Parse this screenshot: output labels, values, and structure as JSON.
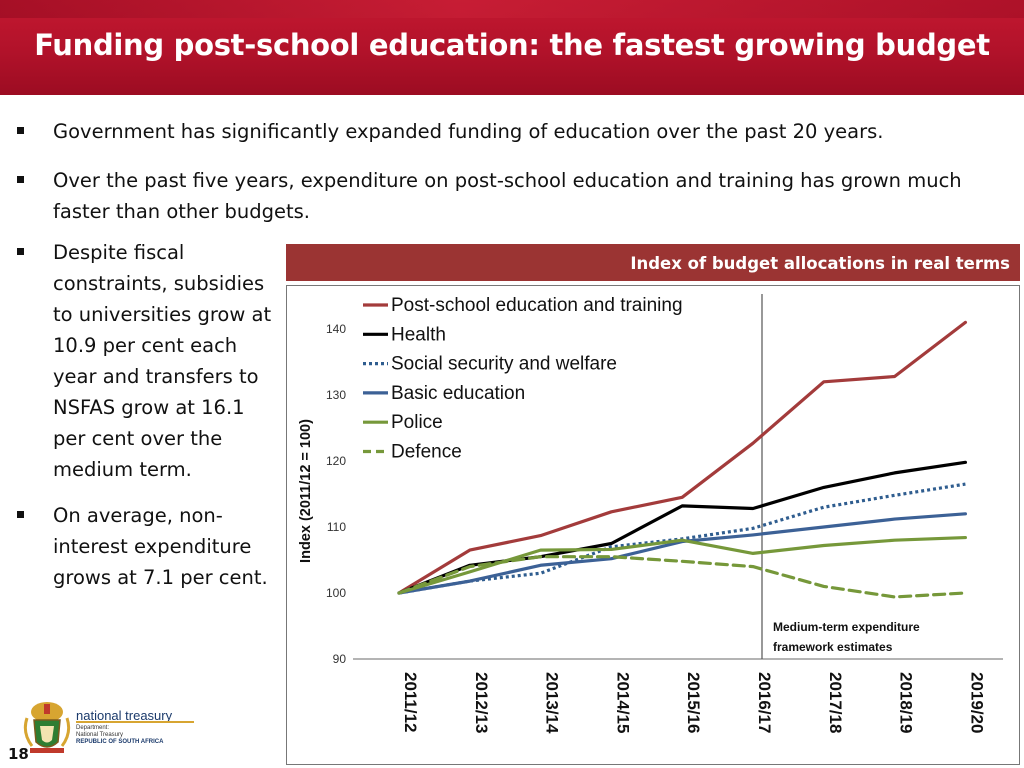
{
  "slide": {
    "title": "Funding post-school education: the fastest growing budget",
    "page_number": "18"
  },
  "bullets": [
    "Government has significantly expanded funding of education over the past 20 years.",
    "Over the past five years, expenditure on post-school education and training has grown much faster than other budgets.",
    "Despite fiscal constraints, subsidies to universities grow at 10.9 per cent each year and transfers to NSFAS grow at 16.1 per cent over the medium term.",
    "On average, non-interest expenditure grows at 7.1 per cent."
  ],
  "logo": {
    "name": "national treasury",
    "line1": "Department:",
    "line2": "National Treasury",
    "line3": "REPUBLIC OF SOUTH AFRICA"
  },
  "chart_header": "Index of budget allocations in real terms",
  "chart_data": {
    "type": "line",
    "title": "Index of budget allocations in real terms",
    "ylabel": "Index (2011/12 = 100)",
    "xlabel": "",
    "ylim": [
      90,
      140
    ],
    "yticks": [
      90,
      100,
      110,
      120,
      130,
      140
    ],
    "categories": [
      "2011/12",
      "2012/13",
      "2013/14",
      "2014/15",
      "2015/16",
      "2016/17",
      "2017/18",
      "2018/19",
      "2019/20"
    ],
    "legend_position": "top-left",
    "divider_after": "2016/17",
    "annotation": "Medium-term expenditure framework estimates",
    "series": [
      {
        "name": "Post-school education and training",
        "color": "#a33b3b",
        "dash": "solid",
        "values": [
          100,
          106.5,
          108.7,
          112.3,
          114.5,
          122.7,
          132,
          132.8,
          141
        ]
      },
      {
        "name": "Health",
        "color": "#000000",
        "dash": "solid",
        "values": [
          100,
          104.2,
          105.5,
          107.5,
          113.2,
          112.8,
          116,
          118.2,
          119.8
        ]
      },
      {
        "name": "Social security and welfare",
        "color": "#2f5d8f",
        "dash": "dot",
        "values": [
          100,
          101.8,
          103,
          107,
          108.2,
          109.8,
          113,
          114.8,
          116.5
        ]
      },
      {
        "name": "Basic education",
        "color": "#3c6196",
        "dash": "solid",
        "values": [
          100,
          101.8,
          104.2,
          105.2,
          107.8,
          108.8,
          110,
          111.2,
          112
        ]
      },
      {
        "name": "Police",
        "color": "#76983a",
        "dash": "solid",
        "values": [
          100,
          103.2,
          106.5,
          106.6,
          108,
          106,
          107.2,
          108,
          108.4
        ]
      },
      {
        "name": "Defence",
        "color": "#76983a",
        "dash": "dash",
        "values": [
          100,
          104,
          105.5,
          105.5,
          104.8,
          104,
          101,
          99.4,
          100
        ]
      }
    ]
  }
}
